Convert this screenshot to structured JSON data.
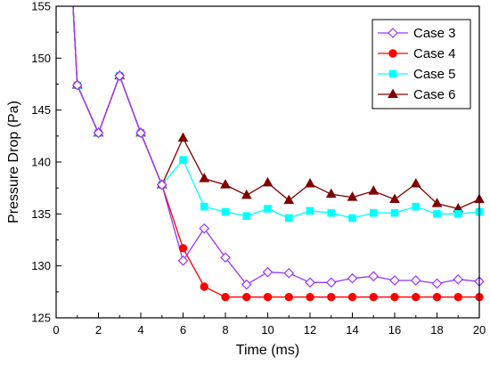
{
  "chart_data": {
    "type": "line",
    "xlabel": "Time (ms)",
    "ylabel": "Pressure Drop (Pa)",
    "xlim": [
      0,
      20
    ],
    "ylim": [
      125,
      155
    ],
    "xticks": [
      0,
      2,
      4,
      6,
      8,
      10,
      12,
      14,
      16,
      18,
      20
    ],
    "yticks": [
      125,
      130,
      135,
      140,
      145,
      150,
      155
    ],
    "grid": false,
    "legend": "top-right",
    "series": [
      {
        "name": "Case 3",
        "color": "#9933ff",
        "marker": "diamond-open",
        "x": [
          0.8,
          1,
          2,
          3,
          4,
          5,
          6,
          7,
          8,
          9,
          10,
          11,
          12,
          13,
          14,
          15,
          16,
          17,
          18,
          19,
          20
        ],
        "y": [
          155,
          147.4,
          142.8,
          148.3,
          142.8,
          137.8,
          130.5,
          133.6,
          130.8,
          128.2,
          129.4,
          129.3,
          128.4,
          128.4,
          128.8,
          129.0,
          128.6,
          128.6,
          128.3,
          128.7,
          128.5
        ]
      },
      {
        "name": "Case 4",
        "color": "#ff0000",
        "marker": "circle",
        "x": [
          0.8,
          1,
          2,
          3,
          4,
          5,
          6,
          7,
          8,
          9,
          10,
          11,
          12,
          13,
          14,
          15,
          16,
          17,
          18,
          19,
          20
        ],
        "y": [
          155,
          147.4,
          142.8,
          148.3,
          142.8,
          137.8,
          131.7,
          128.0,
          127.0,
          127.0,
          127.0,
          127.0,
          127.0,
          127.0,
          127.0,
          127.0,
          127.0,
          127.0,
          127.0,
          127.0,
          127.0
        ]
      },
      {
        "name": "Case 5",
        "color": "#00ffff",
        "marker": "square",
        "x": [
          0.8,
          1,
          2,
          3,
          4,
          5,
          6,
          7,
          8,
          9,
          10,
          11,
          12,
          13,
          14,
          15,
          16,
          17,
          18,
          19,
          20
        ],
        "y": [
          155,
          147.4,
          142.8,
          148.3,
          142.8,
          137.8,
          140.2,
          135.7,
          135.2,
          134.8,
          135.5,
          134.6,
          135.3,
          135.1,
          134.6,
          135.1,
          135.1,
          135.7,
          135.0,
          135.0,
          135.2
        ]
      },
      {
        "name": "Case 6",
        "color": "#800000",
        "marker": "triangle",
        "x": [
          0.8,
          1,
          2,
          3,
          4,
          5,
          6,
          7,
          8,
          9,
          10,
          11,
          12,
          13,
          14,
          15,
          16,
          17,
          18,
          19,
          20
        ],
        "y": [
          155,
          147.4,
          142.8,
          148.3,
          142.8,
          137.8,
          142.3,
          138.4,
          137.8,
          136.8,
          138.0,
          136.3,
          137.9,
          136.9,
          136.6,
          137.2,
          136.4,
          137.9,
          136.0,
          135.5,
          136.4
        ]
      }
    ]
  }
}
